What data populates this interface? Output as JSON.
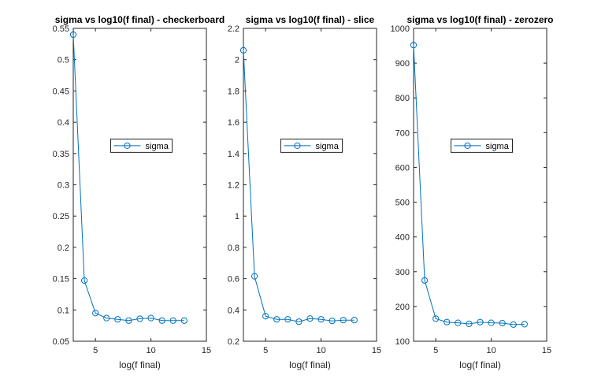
{
  "colors": {
    "line": "#0072BD",
    "axis": "#262626",
    "background": "#ffffff"
  },
  "chart_data": [
    {
      "type": "line",
      "title": "sigma vs log10(f final) - checkerboard",
      "xlabel": "log(f final)",
      "ylabel": "",
      "xlim": [
        3,
        15
      ],
      "ylim": [
        0.05,
        0.55
      ],
      "xticks": [
        "5",
        "10",
        "15"
      ],
      "yticks": [
        "0.05",
        "0.1",
        "0.15",
        "0.2",
        "0.25",
        "0.3",
        "0.35",
        "0.4",
        "0.45",
        "0.5",
        "0.55"
      ],
      "grid": false,
      "legend": {
        "entries": [
          "sigma"
        ],
        "position": "center"
      },
      "series": [
        {
          "name": "sigma",
          "marker": "circle",
          "x": [
            3,
            4,
            5,
            6,
            7,
            8,
            9,
            10,
            11,
            12,
            13
          ],
          "y": [
            0.54,
            0.147,
            0.095,
            0.087,
            0.085,
            0.083,
            0.086,
            0.087,
            0.083,
            0.083,
            0.083
          ]
        }
      ]
    },
    {
      "type": "line",
      "title": "sigma vs log10(f final) - slice",
      "xlabel": "log(f final)",
      "ylabel": "",
      "xlim": [
        3,
        15
      ],
      "ylim": [
        0.2,
        2.2
      ],
      "xticks": [
        "5",
        "10",
        "15"
      ],
      "yticks": [
        "0.2",
        "0.4",
        "0.6",
        "0.8",
        "1",
        "1.2",
        "1.4",
        "1.6",
        "1.8",
        "2",
        "2.2"
      ],
      "grid": false,
      "legend": {
        "entries": [
          "sigma"
        ],
        "position": "center"
      },
      "series": [
        {
          "name": "sigma",
          "marker": "circle",
          "x": [
            3,
            4,
            5,
            6,
            7,
            8,
            9,
            10,
            11,
            12,
            13
          ],
          "y": [
            2.06,
            0.615,
            0.36,
            0.34,
            0.34,
            0.325,
            0.345,
            0.34,
            0.33,
            0.335,
            0.335
          ]
        }
      ]
    },
    {
      "type": "line",
      "title": "sigma vs log10(f final) - zerozero",
      "xlabel": "log(f final)",
      "ylabel": "",
      "xlim": [
        3,
        15
      ],
      "ylim": [
        100,
        1000
      ],
      "xticks": [
        "5",
        "10",
        "15"
      ],
      "yticks": [
        "100",
        "200",
        "300",
        "400",
        "500",
        "600",
        "700",
        "800",
        "900",
        "1000"
      ],
      "grid": false,
      "legend": {
        "entries": [
          "sigma"
        ],
        "position": "center"
      },
      "series": [
        {
          "name": "sigma",
          "marker": "circle",
          "x": [
            3,
            4,
            5,
            6,
            7,
            8,
            9,
            10,
            11,
            12,
            13
          ],
          "y": [
            952,
            275,
            165,
            155,
            153,
            150,
            155,
            153,
            152,
            148,
            149
          ]
        }
      ]
    }
  ]
}
